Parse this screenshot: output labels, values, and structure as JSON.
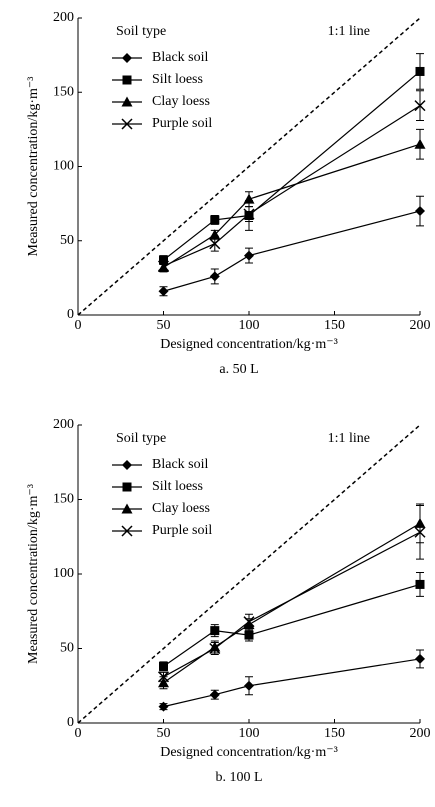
{
  "chart_data": [
    {
      "type": "line",
      "caption": "a. 50 L",
      "xlabel": "Designed concentration/kg·m⁻³",
      "ylabel": "Measured concentration/kg·m⁻³",
      "legend_title": "Soil type",
      "annotation": "1:1 line",
      "color": "#000000",
      "x": [
        50,
        80,
        100,
        200
      ],
      "xlim": [
        0,
        200
      ],
      "ylim": [
        0,
        200
      ],
      "xticks": [
        0,
        50,
        100,
        150,
        200
      ],
      "yticks": [
        0,
        50,
        100,
        150,
        200
      ],
      "series": [
        {
          "name": "Black soil",
          "marker": "diamond",
          "values": [
            16,
            26,
            40,
            70
          ],
          "errors": [
            3,
            5,
            5,
            10
          ]
        },
        {
          "name": "Silt loess",
          "marker": "square",
          "values": [
            37,
            64,
            67,
            164
          ],
          "errors": [
            3,
            3,
            10,
            12
          ]
        },
        {
          "name": "Clay loess",
          "marker": "triangle",
          "values": [
            32,
            54,
            78,
            115
          ],
          "errors": [
            3,
            3,
            5,
            10
          ]
        },
        {
          "name": "Purple soil",
          "marker": "x",
          "values": [
            33,
            48,
            68,
            141
          ],
          "errors": [
            3,
            5,
            5,
            10
          ]
        }
      ]
    },
    {
      "type": "line",
      "caption": "b. 100 L",
      "xlabel": "Designed concentration/kg·m⁻³",
      "ylabel": "Measured concentration/kg·m⁻³",
      "legend_title": "Soil type",
      "annotation": "1:1 line",
      "color": "#000000",
      "x": [
        50,
        80,
        100,
        200
      ],
      "xlim": [
        0,
        200
      ],
      "ylim": [
        0,
        200
      ],
      "xticks": [
        0,
        50,
        100,
        150,
        200
      ],
      "yticks": [
        0,
        50,
        100,
        150,
        200
      ],
      "series": [
        {
          "name": "Black soil",
          "marker": "diamond",
          "values": [
            11,
            19,
            25,
            43
          ],
          "errors": [
            2,
            3,
            6,
            6
          ]
        },
        {
          "name": "Silt loess",
          "marker": "square",
          "values": [
            38,
            62,
            59,
            93
          ],
          "errors": [
            3,
            4,
            4,
            8
          ]
        },
        {
          "name": "Clay loess",
          "marker": "triangle",
          "values": [
            27,
            51,
            66,
            134
          ],
          "errors": [
            4,
            4,
            4,
            13
          ]
        },
        {
          "name": "Purple soil",
          "marker": "x",
          "values": [
            31,
            50,
            68,
            128
          ],
          "errors": [
            3,
            4,
            5,
            18
          ]
        }
      ]
    }
  ]
}
